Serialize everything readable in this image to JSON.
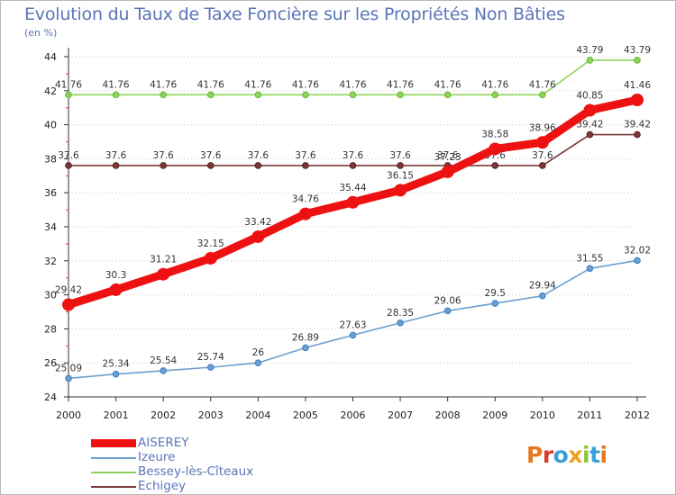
{
  "title": "Evolution du Taux de Taxe Foncière sur les Propriétés Non Bâties",
  "unit_label": "(en %)",
  "logo_text": "Proxiti",
  "colors": {
    "aiserey": "#ee1111",
    "izeure": "#6b9fcf",
    "bessey": "#8fd45a",
    "echigey": "#7a3a3a",
    "axis": "#333333",
    "grid": "#cccccc"
  },
  "chart_data": {
    "type": "line",
    "title": "Evolution du Taux de Taxe Foncière sur les Propriétés Non Bâties",
    "ylabel": "(en %)",
    "xlabel": "",
    "categories": [
      "2000",
      "2001",
      "2002",
      "2003",
      "2004",
      "2005",
      "2006",
      "2007",
      "2008",
      "2009",
      "2010",
      "2011",
      "2012"
    ],
    "ylim": [
      24,
      44
    ],
    "yticks": [
      24,
      26,
      28,
      30,
      32,
      34,
      36,
      38,
      40,
      42,
      44
    ],
    "grid": "horizontal dotted",
    "legend_position": "bottom-left",
    "series": [
      {
        "name": "AISEREY",
        "color": "#ee1111",
        "values": [
          29.42,
          30.3,
          31.21,
          32.15,
          33.42,
          34.76,
          35.44,
          36.15,
          37.23,
          38.58,
          38.96,
          40.85,
          41.46
        ],
        "labels": [
          "29.42",
          "30.3",
          "31.21",
          "32.15",
          "33.42",
          "34.76",
          "35.44",
          "36.15",
          "37.23",
          "38.58",
          "38.96",
          "40.85",
          "41.46"
        ]
      },
      {
        "name": "Izeure",
        "color": "#6b9fcf",
        "values": [
          25.09,
          25.34,
          25.54,
          25.74,
          26,
          26.89,
          27.63,
          28.35,
          29.06,
          29.5,
          29.94,
          31.55,
          32.02
        ],
        "labels": [
          "25.09",
          "25.34",
          "25.54",
          "25.74",
          "26",
          "26.89",
          "27.63",
          "28.35",
          "29.06",
          "29.5",
          "29.94",
          "31.55",
          "32.02"
        ]
      },
      {
        "name": "Bessey-lès-Cîteaux",
        "color": "#8fd45a",
        "values": [
          41.76,
          41.76,
          41.76,
          41.76,
          41.76,
          41.76,
          41.76,
          41.76,
          41.76,
          41.76,
          41.76,
          43.79,
          43.79
        ],
        "labels": [
          "41.76",
          "41.76",
          "41.76",
          "41.76",
          "41.76",
          "41.76",
          "41.76",
          "41.76",
          "41.76",
          "41.76",
          "41.76",
          "43.79",
          "43.79"
        ]
      },
      {
        "name": "Echigey",
        "color": "#7a3a3a",
        "values": [
          37.6,
          37.6,
          37.6,
          37.6,
          37.6,
          37.6,
          37.6,
          37.6,
          37.6,
          37.6,
          37.6,
          39.42,
          39.42
        ],
        "labels": [
          "37.6",
          "37.6",
          "37.6",
          "37.6",
          "37.6",
          "37.6",
          "37.6",
          "37.6",
          "37.6",
          "37.6",
          "37.6",
          "39.42",
          "39.42"
        ]
      }
    ]
  }
}
